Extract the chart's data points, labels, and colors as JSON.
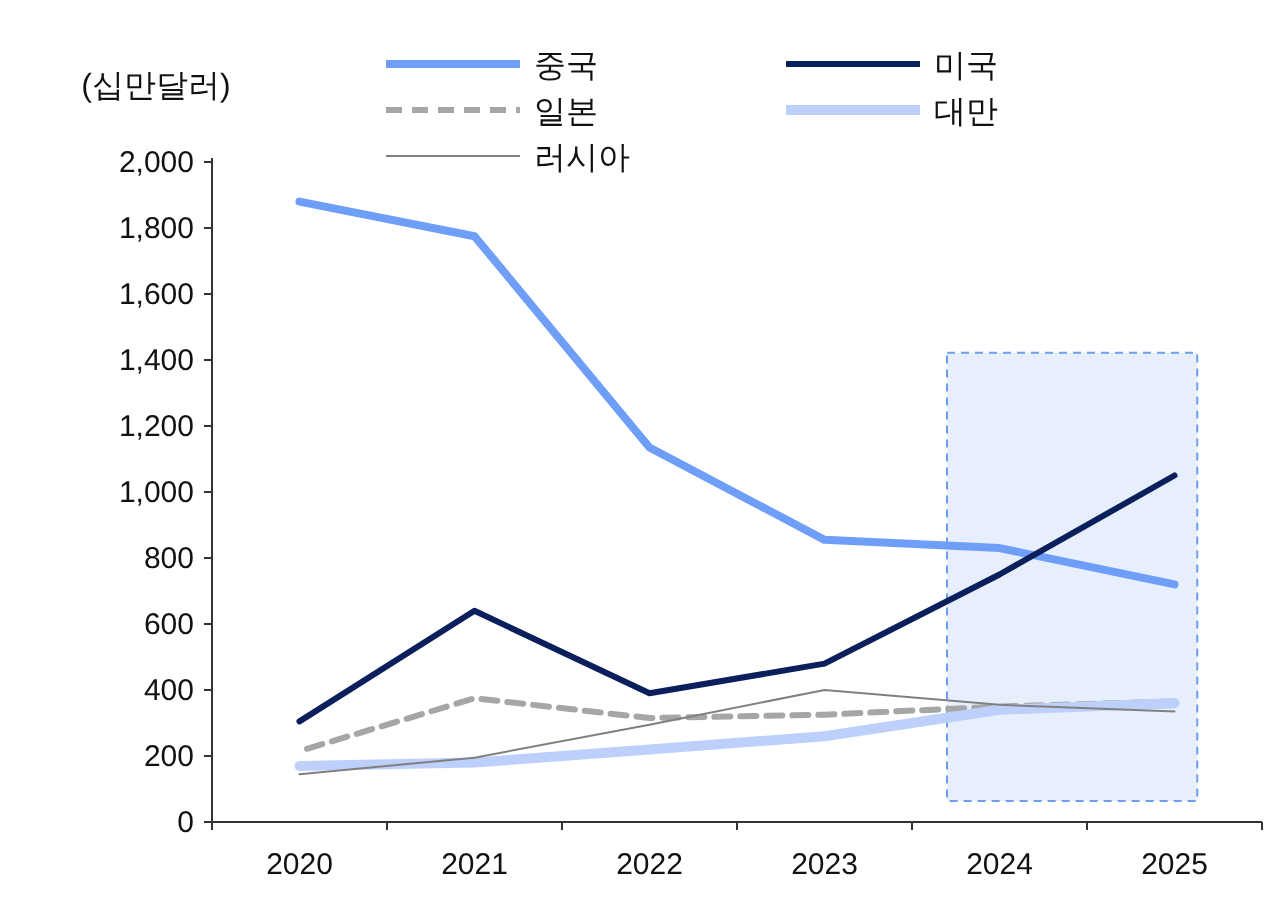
{
  "chart_data": {
    "type": "line",
    "ylabel": "(십만달러)",
    "categories": [
      "2020",
      "2021",
      "2022",
      "2023",
      "2024",
      "2025"
    ],
    "series": [
      {
        "name": "중국",
        "color": "#6f9ef8",
        "values": [
          1880,
          1775,
          1135,
          855,
          830,
          720
        ]
      },
      {
        "name": "미국",
        "color": "#0a1f5c",
        "values": [
          305,
          640,
          390,
          480,
          750,
          1050
        ]
      },
      {
        "name": "일본",
        "color": "#a6a6a6",
        "line_style": "dashed",
        "values": [
          215,
          375,
          315,
          325,
          350,
          365
        ]
      },
      {
        "name": "대만",
        "color": "#bcd0fb",
        "values": [
          170,
          180,
          220,
          260,
          340,
          360
        ]
      },
      {
        "name": "러시아",
        "color": "#808080",
        "values": [
          145,
          195,
          295,
          400,
          355,
          335
        ]
      }
    ],
    "ylim": [
      0,
      2000
    ],
    "yticks": [
      0,
      200,
      400,
      600,
      800,
      {
        "value": 1000,
        "label": "1,000"
      },
      {
        "value": 1200,
        "label": "1,200"
      },
      {
        "value": 1400,
        "label": "1,400"
      },
      {
        "value": 1600,
        "label": "1,600"
      },
      {
        "value": 1800,
        "label": "1,800"
      },
      {
        "value": 2000,
        "label": "2,000"
      }
    ],
    "bands": [
      {
        "axis": "x",
        "from": "2024",
        "to": "2025",
        "color": "#e8effc"
      }
    ],
    "legend": "top",
    "grid": false,
    "marker": "none"
  }
}
